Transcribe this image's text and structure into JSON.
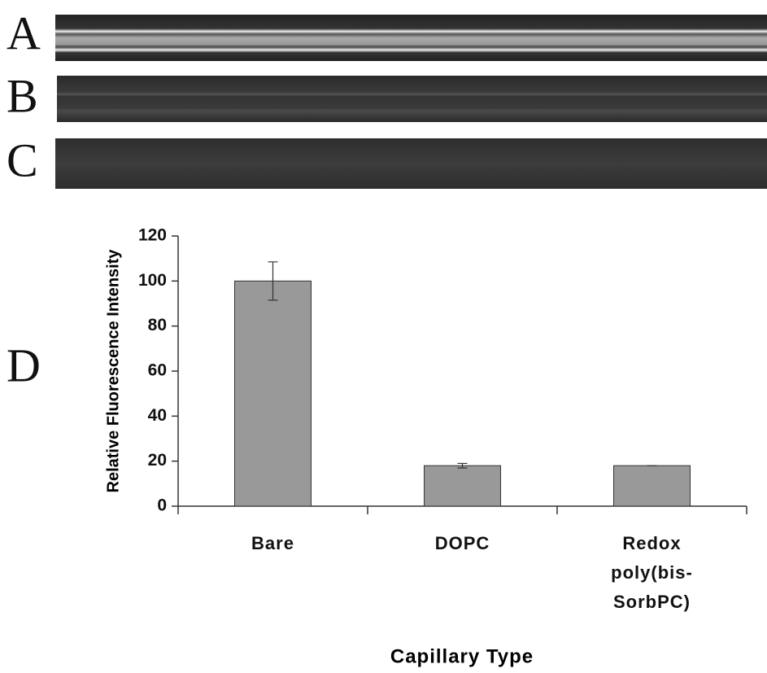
{
  "panel_labels": [
    "A",
    "B",
    "C",
    "D"
  ],
  "chart_data": {
    "type": "bar",
    "categories": [
      "Bare",
      "DOPC",
      "Redox poly(bis-SorbPC)"
    ],
    "values": [
      100,
      18,
      18
    ],
    "errors": [
      8.5,
      1,
      0
    ],
    "color": "#999999",
    "ylim": [
      0,
      120
    ],
    "yticks": [
      0,
      20,
      40,
      60,
      80,
      100,
      120
    ],
    "y_label": "Relative Fluorescence Intensity",
    "x_label": "Capillary Type"
  }
}
